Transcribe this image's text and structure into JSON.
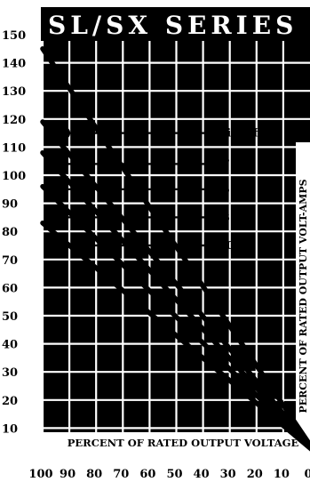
{
  "chart_data": {
    "type": "line",
    "title": "SL/SX SERIES",
    "xlabel": "PERCENT OF RATED OUTPUT VOLTAGE",
    "ylabel": "PERCENT OF RATED OUTPUT VOLT-AMPS",
    "x_ticks": [
      "100",
      "90",
      "80",
      "70",
      "60",
      "50",
      "40",
      "30",
      "20",
      "10",
      "0"
    ],
    "y_ticks": [
      "150",
      "140",
      "130",
      "120",
      "110",
      "100",
      "90",
      "80",
      "70",
      "60",
      "50",
      "40",
      "30",
      "20",
      "10"
    ],
    "xlim": [
      100,
      0
    ],
    "ylim": [
      0,
      153
    ],
    "grid": true,
    "series": [
      {
        "name": "unity pf",
        "points": [
          [
            100,
            145
          ],
          [
            0,
            0
          ]
        ],
        "marker": [
          92,
          115
        ]
      },
      {
        "name": "0.7 pf",
        "points": [
          [
            100,
            119
          ],
          [
            0,
            0
          ]
        ],
        "marker": [
          94,
          104
        ]
      },
      {
        "name": "0.5 pf",
        "points": [
          [
            100,
            108
          ],
          [
            0,
            0
          ]
        ],
        "marker": [
          94,
          95
        ]
      },
      {
        "name": "0.3 pf",
        "points": [
          [
            100,
            96
          ],
          [
            0,
            0
          ]
        ],
        "marker": [
          94,
          85
        ]
      },
      {
        "name": "0 pf",
        "points": [
          [
            100,
            83
          ],
          [
            0,
            0
          ]
        ],
        "marker": [
          96,
          75
        ]
      }
    ]
  },
  "colors": {
    "title_band": "#000000",
    "plot_background": "#000000",
    "grid": "#ffffff",
    "lines": "#000000"
  }
}
